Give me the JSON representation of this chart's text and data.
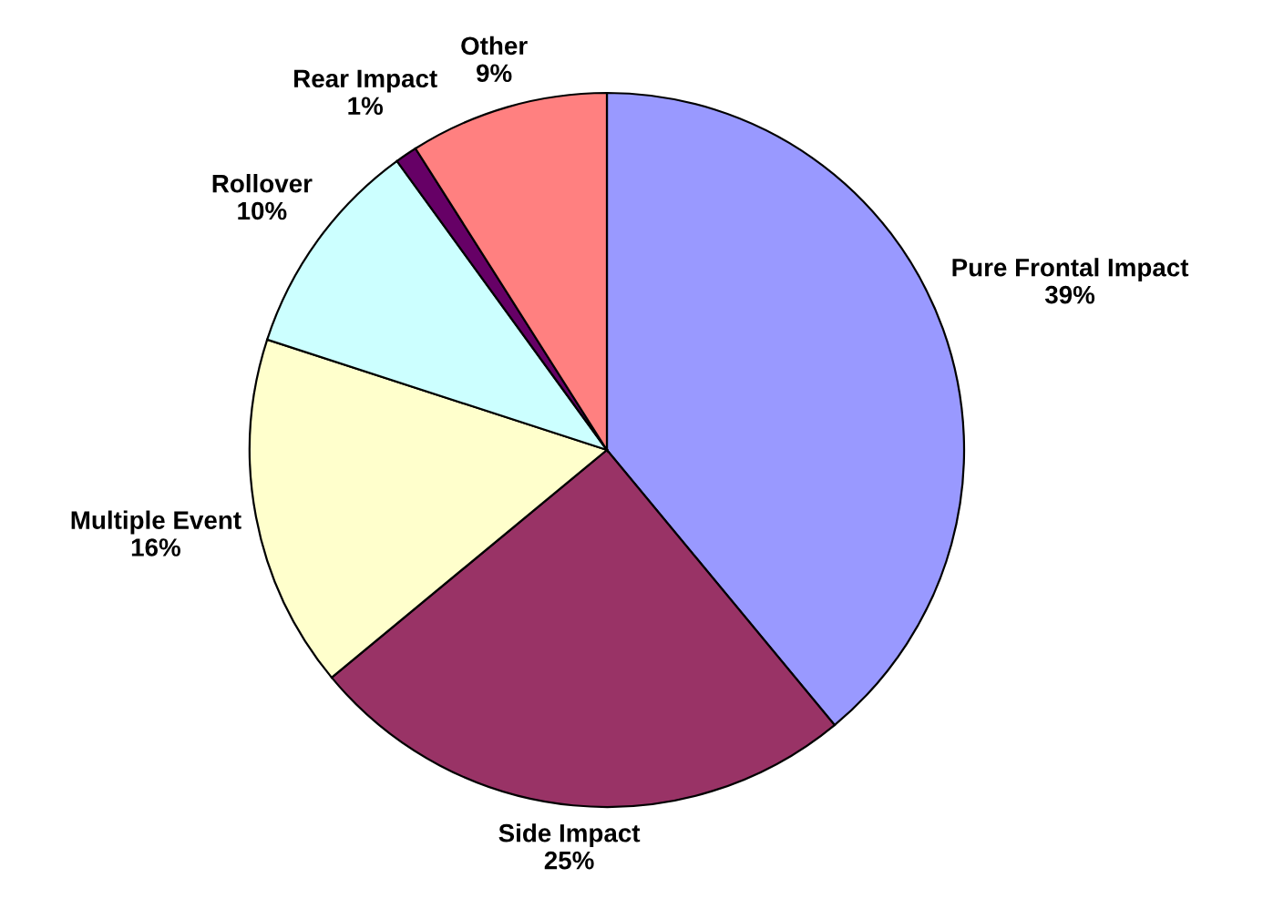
{
  "chart_data": {
    "type": "pie",
    "categories": [
      "Pure Frontal Impact",
      "Side Impact",
      "Multiple Event",
      "Rollover",
      "Rear Impact",
      "Other"
    ],
    "values": [
      39,
      25,
      16,
      10,
      1,
      9
    ],
    "value_labels": [
      "39%",
      "25%",
      "16%",
      "10%",
      "1%",
      "9%"
    ],
    "colors": [
      "#9999ff",
      "#993366",
      "#ffffcc",
      "#ccffff",
      "#660066",
      "#ff8080"
    ],
    "legend": false
  }
}
